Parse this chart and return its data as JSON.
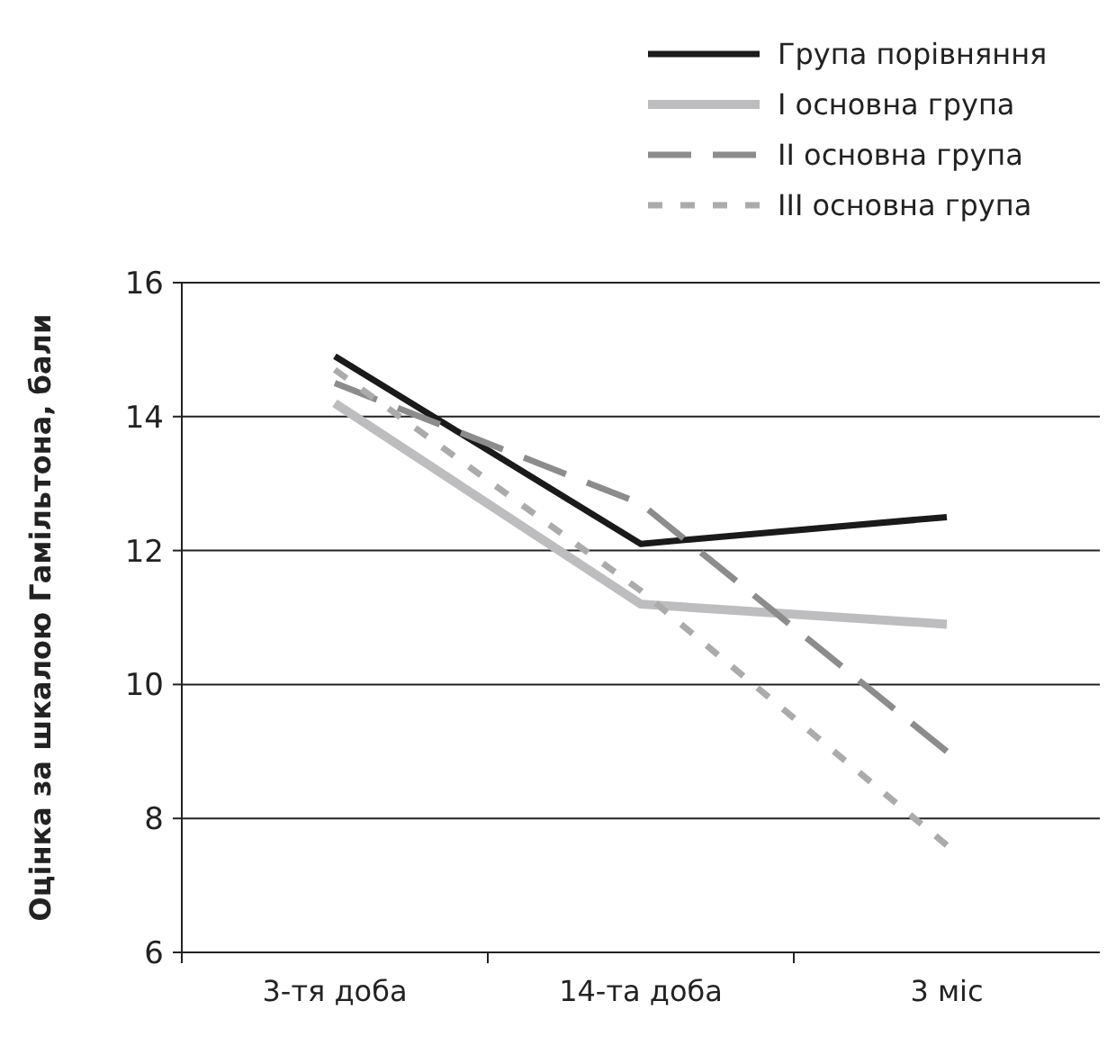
{
  "chart_data": {
    "type": "line",
    "ylabel": "Оцінка за шкалою Гамільтона, бали",
    "categories": [
      "3-тя доба",
      "14-та доба",
      "3 міс"
    ],
    "series": [
      {
        "name": "Група порівняння",
        "color": "#1a1a1a",
        "line_style": "solid",
        "values": [
          14.9,
          12.1,
          12.5
        ]
      },
      {
        "name": "І основна група",
        "color": "#bdbdbf",
        "line_style": "solid",
        "values": [
          14.2,
          11.2,
          10.9
        ]
      },
      {
        "name": "ІІ основна група",
        "color": "#8c8c8c",
        "line_style": "dashed",
        "values": [
          14.5,
          12.7,
          9.0
        ]
      },
      {
        "name": "ІІІ основна група",
        "color": "#ababab",
        "line_style": "dotted",
        "values": [
          14.7,
          11.4,
          7.6
        ]
      }
    ],
    "ylim": [
      6,
      16
    ],
    "yticks": [
      6,
      8,
      10,
      12,
      14,
      16
    ],
    "grid": "y",
    "legend": "top right"
  }
}
